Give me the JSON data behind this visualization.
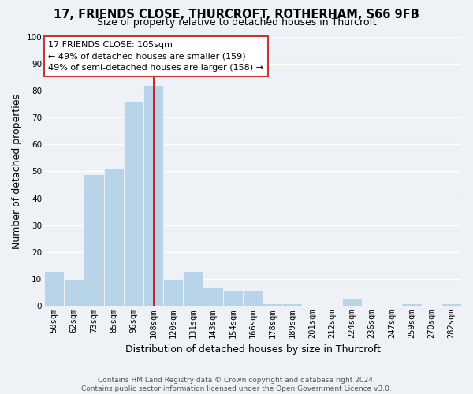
{
  "title": "17, FRIENDS CLOSE, THURCROFT, ROTHERHAM, S66 9FB",
  "subtitle": "Size of property relative to detached houses in Thurcroft",
  "xlabel": "Distribution of detached houses by size in Thurcroft",
  "ylabel": "Number of detached properties",
  "bin_labels": [
    "50sqm",
    "62sqm",
    "73sqm",
    "85sqm",
    "96sqm",
    "108sqm",
    "120sqm",
    "131sqm",
    "143sqm",
    "154sqm",
    "166sqm",
    "178sqm",
    "189sqm",
    "201sqm",
    "212sqm",
    "224sqm",
    "236sqm",
    "247sqm",
    "259sqm",
    "270sqm",
    "282sqm"
  ],
  "bar_heights": [
    13,
    10,
    49,
    51,
    76,
    82,
    10,
    13,
    7,
    6,
    6,
    1,
    1,
    0,
    0,
    3,
    0,
    0,
    1,
    0,
    1
  ],
  "bar_color": "#b8d4e8",
  "vline_bar_index": 5,
  "vline_color": "#cc0000",
  "annotation_line1": "17 FRIENDS CLOSE: 105sqm",
  "annotation_line2": "← 49% of detached houses are smaller (159)",
  "annotation_line3": "49% of semi-detached houses are larger (158) →",
  "annotation_box_color": "#ffffff",
  "annotation_box_edge": "#cc3333",
  "ylim": [
    0,
    100
  ],
  "footnote": "Contains HM Land Registry data © Crown copyright and database right 2024.\nContains public sector information licensed under the Open Government Licence v3.0.",
  "background_color": "#eef2f7",
  "title_fontsize": 10.5,
  "subtitle_fontsize": 9,
  "tick_fontsize": 7.5,
  "ylabel_fontsize": 9,
  "xlabel_fontsize": 9,
  "annotation_fontsize": 8,
  "footnote_fontsize": 6.5
}
